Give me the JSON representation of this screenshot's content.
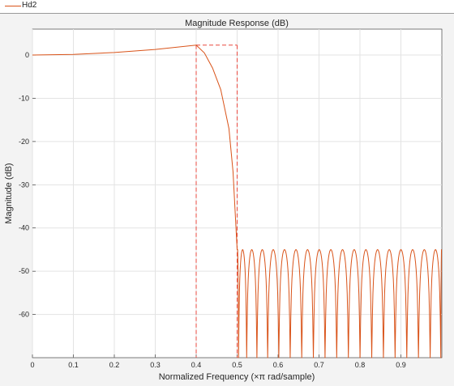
{
  "legend": {
    "entries": [
      {
        "name": "Hd2",
        "color": "#d95319"
      }
    ]
  },
  "chart_data": {
    "type": "line",
    "title": "Magnitude Response (dB)",
    "xlabel": "Normalized Frequency (×π rad/sample)",
    "ylabel": "Magnitude (dB)",
    "xlim": [
      0,
      1
    ],
    "ylim": [
      -70,
      6
    ],
    "xticks": [
      0,
      0.1,
      0.2,
      0.3,
      0.4,
      0.5,
      0.6,
      0.7,
      0.8,
      0.9
    ],
    "xtick_labels": [
      "0",
      "0.1",
      "0.2",
      "0.3",
      "0.4",
      "0.5",
      "0.6",
      "0.7",
      "0.8",
      "0.9"
    ],
    "yticks": [
      0,
      -10,
      -20,
      -30,
      -40,
      -50,
      -60
    ],
    "ytick_labels": [
      "0",
      "-10",
      "-20",
      "-30",
      "-40",
      "-50",
      "-60"
    ],
    "grid": true,
    "legend_position": "top-left",
    "series": [
      {
        "name": "Hd2",
        "color": "#d95319",
        "passband": {
          "x": [
            0,
            0.1,
            0.2,
            0.3,
            0.4
          ],
          "y": [
            0,
            0.15,
            0.6,
            1.3,
            2.3
          ]
        },
        "transition": {
          "x": [
            0.4,
            0.42,
            0.44,
            0.46,
            0.48,
            0.49,
            0.5
          ],
          "y": [
            2.3,
            0.5,
            -3,
            -8,
            -17,
            -27,
            -45
          ]
        },
        "stopband": {
          "peak_level": -45,
          "start": 0.5,
          "end": 1.0,
          "nulls": [
            0.5035,
            0.5233,
            0.5483,
            0.5746,
            0.6018,
            0.6296,
            0.6578,
            0.6862,
            0.7147,
            0.7432,
            0.7717,
            0.8002,
            0.8288,
            0.8573,
            0.8858,
            0.9144,
            0.9429,
            0.9715,
            0.9975
          ]
        }
      }
    ],
    "mask": {
      "color": "#e8483f",
      "style": "dashed",
      "passband_edge": 0.4,
      "stopband_edge": 0.5,
      "passband_upper_db": 2.3
    }
  }
}
